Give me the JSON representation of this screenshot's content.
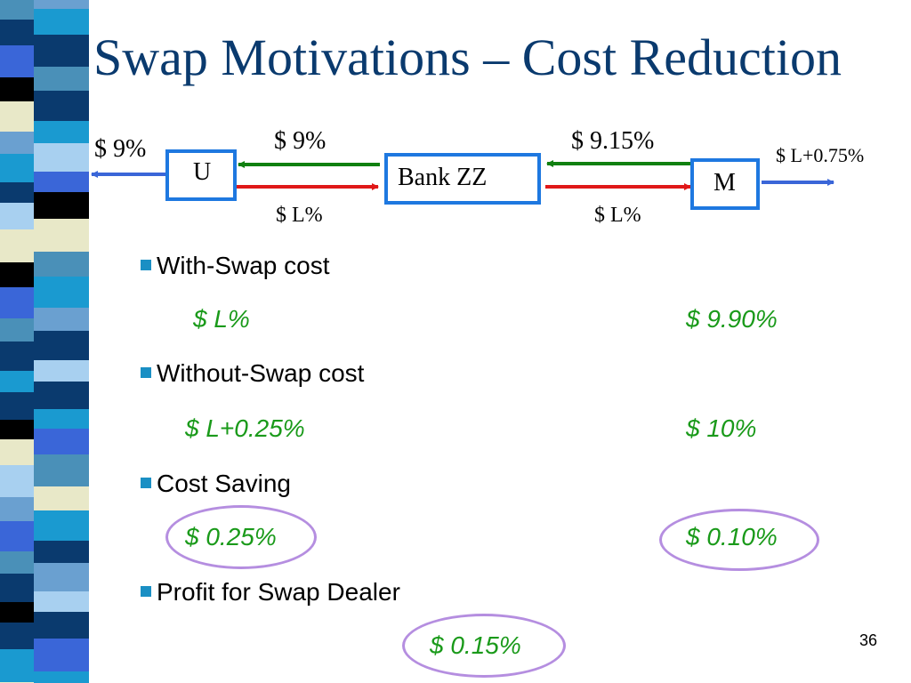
{
  "slide": {
    "title": "Swap Motivations – Cost Reduction",
    "page_number": "36"
  },
  "diagram": {
    "u_label": "U",
    "bank_label": "Bank ZZ",
    "m_label": "M",
    "u_outside_rate": "$ 9%",
    "u_to_bank_top": "$ 9%",
    "bank_to_u_bottom": "$ L%",
    "bank_m_top": "$ 9.15%",
    "bank_m_bottom": "$ L%",
    "m_outside_rate": "$ L+0.75%",
    "colors": {
      "box_border": "#1e78e0",
      "arrow_green": "#108010",
      "arrow_red": "#e01818",
      "arrow_blue": "#3a66d8"
    }
  },
  "content": {
    "with_swap_heading": "With-Swap cost",
    "with_swap_left": "$ L%",
    "with_swap_right": "$ 9.90%",
    "without_swap_heading": "Without-Swap cost",
    "without_swap_left": "$ L+0.25%",
    "without_swap_right": "$ 10%",
    "saving_heading": "Cost Saving",
    "saving_left": "$ 0.25%",
    "saving_right": "$ 0.10%",
    "profit_heading": "Profit for Swap Dealer",
    "profit_value": "$ 0.15%"
  },
  "stripe_colors": [
    "#4a90b8",
    "#0a3a6e",
    "#3a66d8",
    "#000000",
    "#e8e8c8",
    "#6aa0d0",
    "#1a9ad0",
    "#0a3a6e",
    "#a8d0f0"
  ]
}
